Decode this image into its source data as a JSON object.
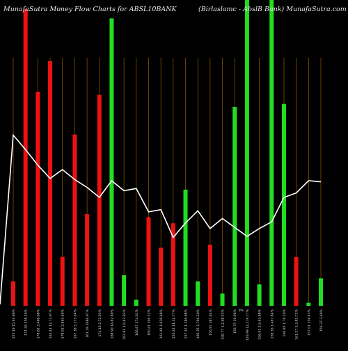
{
  "header": {
    "left_title": "MunafaSutra  Money Flow  Charts for ABSL10BANK",
    "right_title": "(Birlaslamc -  AbslB Bank) MunafaSutra.com"
  },
  "colors": {
    "background": "#000000",
    "positive": "#22dd22",
    "negative": "#ee1111",
    "price_line": "#ffffff",
    "grid": "#b06a00"
  },
  "chart_data": {
    "type": "bar",
    "title": "MunafaSutra  Money Flow  Charts for ABSL10BANK",
    "xlabel": "",
    "ylabel": "",
    "ylim": [
      0,
      100
    ],
    "categories": [
      "155.19 15,63.96%",
      "174.26 358.26%",
      "178.82 3,468.68%",
      "164.41 12,72.97%",
      "178.91 2,865.69%",
      "167.38 5,173.64%",
      "161.29 2086.97%",
      "174.16 2,72.93%",
      "168.90 14,82.89%",
      "162.91 1,6,83.93%",
      "166.67 174.01%",
      "160.41 106.52%",
      "161.41 1,938.68%",
      "156.23 11,12.77%",
      "157.12 1,186.98%",
      "160.35 2,706.30%",
      "156.97 187.64%",
      "158.77 1,2,68.33%",
      "156.75 19.96%",
      "156.99 12,179.77%",
      "156.91 2,5,63.88%",
      "158.36 1,467.84%",
      "160.85 1,76.20%",
      "161.27 1,3,82.72%",
      "157.01 156.43%",
      "156.37 3,69%"
    ],
    "series": [
      {
        "values": [
          8,
          97,
          70,
          80,
          16,
          56,
          30,
          69,
          94,
          10,
          2,
          29,
          19,
          27,
          38,
          8,
          20,
          4,
          65,
          100,
          7,
          100,
          66,
          16,
          1,
          9
        ],
        "colors": [
          "red",
          "red",
          "red",
          "red",
          "red",
          "red",
          "red",
          "red",
          "green",
          "green",
          "green",
          "red",
          "red",
          "red",
          "green",
          "green",
          "red",
          "green",
          "green",
          "green",
          "green",
          "green",
          "green",
          "red",
          "green",
          "green"
        ]
      },
      {
        "type": "line",
        "values": [
          161.5,
          160.2,
          158.8,
          157.6,
          158.4,
          157.5,
          156.8,
          155.9,
          157.4,
          156.5,
          156.7,
          154.6,
          154.8,
          152.3,
          153.6,
          154.7,
          153.1,
          154.0,
          153.2,
          152.4,
          153.1,
          153.7,
          155.9,
          156.3,
          157.4,
          157.3
        ]
      }
    ],
    "x_suffix_label": "0%",
    "grid": "vertical-lines"
  }
}
